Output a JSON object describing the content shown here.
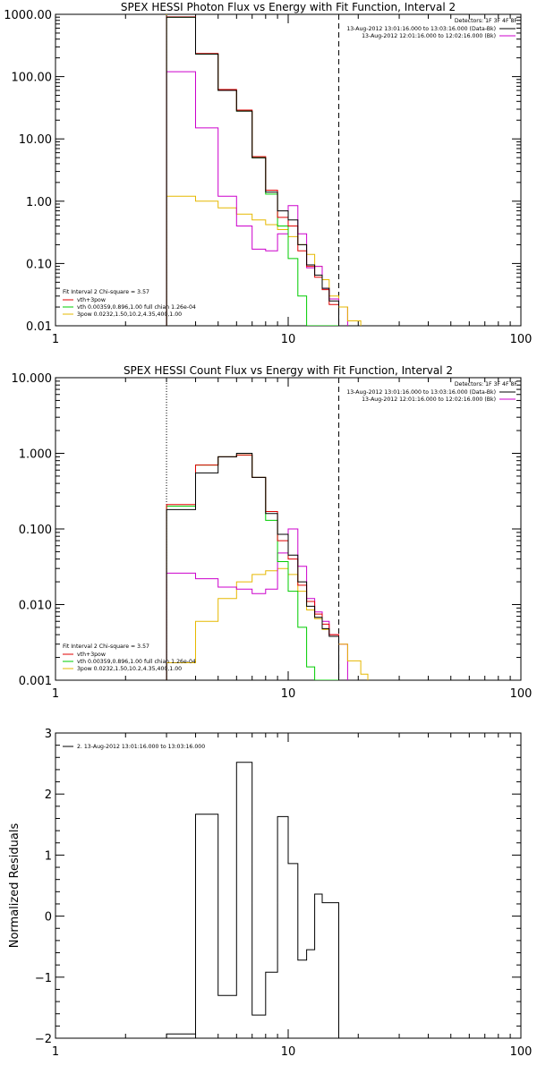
{
  "colors": {
    "data": "#000000",
    "total": "#e00000",
    "vth": "#00cc00",
    "3pow": "#cc00cc",
    "bpow": "#e6b800"
  },
  "chart_data": [
    {
      "type": "line",
      "title": "SPEX HESSI Photon Flux vs Energy with Fit Function, Interval 2",
      "xscale": "log",
      "yscale": "log",
      "xlim": [
        1,
        100
      ],
      "ylim": [
        0.01,
        1000
      ],
      "xticks": [
        1,
        10,
        100
      ],
      "xtick_labels": [
        "1",
        "10",
        "100"
      ],
      "yticks": [
        0.01,
        0.1,
        1,
        10,
        100,
        1000
      ],
      "ytick_labels": [
        "0.01",
        "0.10",
        "1.00",
        "10.00",
        "100.00",
        "1000.00"
      ],
      "vlines": [
        {
          "x": 3,
          "style": "dotted",
          "color": "#e6b800"
        },
        {
          "x": 16.5,
          "style": "dashed",
          "color": "#000000"
        }
      ],
      "info": {
        "detectors": "Detectors: 1F 3F 4F 8F",
        "lines": [
          {
            "text": "13-Aug-2012 13:01:16.000 to 13:03:16.000 (Data-Bk)",
            "color": "#000000"
          },
          {
            "text": "13-Aug-2012 12:01:16.000 to 12:02:16.000 (Bk)",
            "color": "#cc00cc"
          }
        ]
      },
      "legend": {
        "header": "Fit Interval 2   Chi-square = 3.57",
        "entries": [
          {
            "text": "vth+3pow",
            "color": "#e00000"
          },
          {
            "text": "vth 0.00359,0.896,1.00   full chian 1.26e-04",
            "color": "#00cc00"
          },
          {
            "text": "3pow 0.0232,1.50,10.2,4.35,400,1.00",
            "color": "#e6b800"
          }
        ]
      },
      "bin_edges": [
        3,
        4,
        5,
        6,
        7,
        8,
        9,
        10,
        11,
        12,
        13,
        14,
        15,
        16.5
      ],
      "series": [
        {
          "name": "Data-Bk",
          "color": "#000000",
          "values": [
            900,
            230,
            60,
            28,
            5.0,
            1.4,
            0.7,
            0.5,
            0.2,
            0.095,
            0.065,
            0.04,
            0.025
          ]
        },
        {
          "name": "vth+3pow",
          "color": "#e00000",
          "values": [
            910,
            235,
            62,
            29,
            5.2,
            1.5,
            0.55,
            0.4,
            0.16,
            0.09,
            0.06,
            0.038,
            0.022
          ]
        },
        {
          "name": "vth",
          "color": "#00cc00",
          "values": [
            900,
            230,
            60,
            28,
            5.0,
            1.3,
            0.4,
            0.12,
            0.03,
            0.009,
            0.0,
            0.0,
            0.0
          ]
        },
        {
          "name": "Bk",
          "color": "#cc00cc",
          "values": [
            120,
            15,
            1.2,
            0.4,
            0.17,
            0.16,
            0.3,
            0.85,
            0.3,
            0.085,
            0.09,
            0.04,
            0.027
          ]
        },
        {
          "name": "3pow",
          "color": "#e6b800",
          "values": [
            1.2,
            1.0,
            0.78,
            0.62,
            0.5,
            0.42,
            0.35,
            0.27,
            0.2,
            0.14,
            0.09,
            0.055,
            0.03
          ]
        }
      ],
      "tails": [
        {
          "color": "#cc00cc",
          "edges": [
            16.5,
            18
          ],
          "values": [
            0.02
          ]
        },
        {
          "color": "#e6b800",
          "edges": [
            16.5,
            18,
            20.5
          ],
          "values": [
            0.02,
            0.012
          ]
        }
      ]
    },
    {
      "type": "line",
      "title": "SPEX HESSI Count Flux vs Energy with Fit Function, Interval 2",
      "xscale": "log",
      "yscale": "log",
      "xlim": [
        1,
        100
      ],
      "ylim": [
        0.001,
        10
      ],
      "xticks": [
        1,
        10,
        100
      ],
      "xtick_labels": [
        "1",
        "10",
        "100"
      ],
      "yticks": [
        0.001,
        0.01,
        0.1,
        1,
        10
      ],
      "ytick_labels": [
        "0.001",
        "0.010",
        "0.100",
        "1.000",
        "10.000"
      ],
      "vlines": [
        {
          "x": 3,
          "style": "dotted",
          "color": "#000000"
        },
        {
          "x": 16.5,
          "style": "dashed",
          "color": "#000000"
        }
      ],
      "info": {
        "detectors": "Detectors: 1F 3F 4F 8F",
        "lines": [
          {
            "text": "13-Aug-2012 13:01:16.000 to 13:03:16.000 (Data-Bk)",
            "color": "#000000"
          },
          {
            "text": "13-Aug-2012 12:01:16.000 to 12:02:16.000 (Bk)",
            "color": "#cc00cc"
          }
        ]
      },
      "legend": {
        "header": "Fit Interval 2   Chi-square = 3.57",
        "entries": [
          {
            "text": "vth+3pow",
            "color": "#e00000"
          },
          {
            "text": "vth 0.00359,0.896,1.00   full chian 1.26e-04",
            "color": "#00cc00"
          },
          {
            "text": "3pow 0.0232,1.50,10.2,4.35,400,1.00",
            "color": "#e6b800"
          }
        ]
      },
      "bin_edges": [
        3,
        4,
        5,
        6,
        7,
        8,
        9,
        10,
        11,
        12,
        13,
        14,
        15,
        16.5
      ],
      "series": [
        {
          "name": "Data-Bk",
          "color": "#000000",
          "values": [
            0.18,
            0.55,
            0.9,
            1.0,
            0.48,
            0.16,
            0.085,
            0.045,
            0.02,
            0.0095,
            0.0068,
            0.0048,
            0.0038
          ]
        },
        {
          "name": "vth+3pow",
          "color": "#e00000",
          "values": [
            0.21,
            0.7,
            0.9,
            0.95,
            0.48,
            0.17,
            0.07,
            0.04,
            0.018,
            0.011,
            0.0075,
            0.0055,
            0.004
          ]
        },
        {
          "name": "vth",
          "color": "#00cc00",
          "values": [
            0.2,
            0.7,
            0.9,
            0.95,
            0.48,
            0.13,
            0.037,
            0.015,
            0.005,
            0.0015,
            0.0,
            0.0,
            0.0
          ]
        },
        {
          "name": "Bk",
          "color": "#cc00cc",
          "values": [
            0.026,
            0.022,
            0.017,
            0.016,
            0.014,
            0.016,
            0.048,
            0.1,
            0.032,
            0.012,
            0.008,
            0.006,
            0.004
          ]
        },
        {
          "name": "3pow",
          "color": "#e6b800",
          "values": [
            0.0017,
            0.006,
            0.012,
            0.02,
            0.025,
            0.028,
            0.03,
            0.025,
            0.015,
            0.0085,
            0.0065,
            0.0047,
            0.004
          ]
        }
      ],
      "tails": [
        {
          "color": "#cc00cc",
          "edges": [
            16.5,
            18
          ],
          "values": [
            0.003
          ]
        },
        {
          "color": "#e6b800",
          "edges": [
            16.5,
            18,
            20.5,
            22
          ],
          "values": [
            0.003,
            0.0018,
            0.0012
          ]
        }
      ]
    },
    {
      "type": "line",
      "title": "",
      "ylabel": "Normalized Residuals",
      "xscale": "log",
      "yscale": "linear",
      "xlim": [
        1,
        100
      ],
      "ylim": [
        -2,
        3
      ],
      "xticks": [
        1,
        10,
        100
      ],
      "xtick_labels": [
        "1",
        "10",
        "100"
      ],
      "yticks": [
        -2,
        -1,
        0,
        1,
        2,
        3
      ],
      "ytick_labels": [
        "−2",
        "−1",
        "0",
        "1",
        "2",
        "3"
      ],
      "legend": {
        "header": "",
        "entries": [
          {
            "text": "2. 13-Aug-2012 13:01:16.000 to 13:03:16.000",
            "color": "#000000"
          }
        ]
      },
      "bin_edges": [
        3,
        4,
        5,
        6,
        7,
        8,
        9,
        10,
        11,
        12,
        13,
        14,
        15,
        16.5
      ],
      "series": [
        {
          "name": "",
          "color": "#000000",
          "values": [
            -1.93,
            1.67,
            -1.3,
            2.52,
            -1.62,
            -0.92,
            1.63,
            0.86,
            -0.72,
            -0.55,
            0.36,
            0.22,
            0.22
          ]
        }
      ]
    }
  ]
}
